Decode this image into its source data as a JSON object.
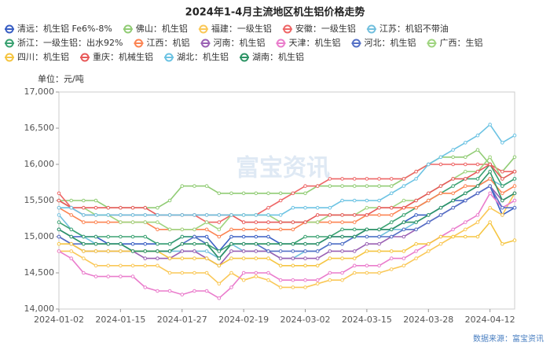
{
  "chart_data": {
    "type": "line",
    "title": "2024年1-4月主流地区机生铝价格走势",
    "y_unit_label": "单位：元/吨",
    "source": "数据来源：富宝资讯",
    "watermark": "富宝资讯",
    "grid": false,
    "legend_position": "top",
    "categories": [
      "2024-01-02",
      null,
      null,
      null,
      null,
      "2024-01-15",
      null,
      null,
      null,
      null,
      "2024-01-27",
      null,
      null,
      null,
      null,
      "2024-02-19",
      null,
      null,
      null,
      null,
      "2024-03-02",
      null,
      null,
      null,
      null,
      "2024-03-15",
      null,
      null,
      null,
      null,
      "2024-03-28",
      null,
      null,
      null,
      null,
      "2024-04-12",
      null,
      null
    ],
    "ylim": [
      14000,
      17000
    ],
    "yticks": [
      {
        "value": 14000,
        "label": "14,000"
      },
      {
        "value": 14500,
        "label": "14,500"
      },
      {
        "value": 15000,
        "label": "15,000"
      },
      {
        "value": 15500,
        "label": "15,500"
      },
      {
        "value": 16000,
        "label": "16,000"
      },
      {
        "value": 16500,
        "label": "16,500"
      },
      {
        "value": 17000,
        "label": "17,000"
      }
    ],
    "series": [
      {
        "name": "清远：机生铝 Fe6%-8%",
        "color": "#3a5fc4",
        "values": [
          15100,
          15000,
          15000,
          15000,
          14900,
          14900,
          14900,
          14900,
          14900,
          14900,
          15000,
          15000,
          15000,
          14800,
          15000,
          15000,
          15000,
          15000,
          14900,
          14900,
          14900,
          14900,
          15000,
          15000,
          15000,
          15100,
          15100,
          15100,
          15200,
          15300,
          15300,
          15400,
          15500,
          15500,
          15600,
          15700,
          15300,
          15400
        ]
      },
      {
        "name": "佛山：机生铝",
        "color": "#91cc75",
        "values": [
          15500,
          15500,
          15500,
          15500,
          15400,
          15400,
          15400,
          15400,
          15400,
          15500,
          15700,
          15700,
          15700,
          15600,
          15600,
          15600,
          15600,
          15600,
          15600,
          15600,
          15600,
          15700,
          15700,
          15700,
          15700,
          15700,
          15700,
          15700,
          15800,
          15900,
          16000,
          16100,
          16100,
          16100,
          16200,
          16000,
          15900,
          16100
        ]
      },
      {
        "name": "福建：一级生铝",
        "color": "#fac858",
        "values": [
          14800,
          14800,
          14700,
          14600,
          14600,
          14600,
          14600,
          14600,
          14600,
          14500,
          14500,
          14500,
          14500,
          14350,
          14500,
          14400,
          14450,
          14400,
          14300,
          14300,
          14300,
          14350,
          14400,
          14400,
          14500,
          14500,
          14500,
          14550,
          14600,
          14700,
          14800,
          14900,
          15000,
          15100,
          15200,
          15400,
          15300,
          15600
        ]
      },
      {
        "name": "安徽：一级生铝",
        "color": "#ee6666",
        "values": [
          15600,
          15400,
          15300,
          15300,
          15300,
          15300,
          15300,
          15300,
          15300,
          15300,
          15300,
          15300,
          15200,
          15200,
          15300,
          15300,
          15300,
          15400,
          15500,
          15600,
          15700,
          15700,
          15800,
          15800,
          15800,
          15800,
          15800,
          15800,
          15800,
          15900,
          16000,
          16000,
          16000,
          16000,
          16000,
          16000,
          15900,
          15900
        ]
      },
      {
        "name": "江苏：机铝不带油",
        "color": "#73c0de",
        "values": [
          15300,
          15100,
          15000,
          14900,
          14900,
          14900,
          14800,
          14800,
          14800,
          14800,
          14800,
          14800,
          14800,
          14700,
          14900,
          14800,
          14800,
          14800,
          14700,
          14700,
          14800,
          14800,
          14900,
          14900,
          15000,
          15000,
          15000,
          15100,
          15100,
          15200,
          15300,
          15400,
          15500,
          15600,
          15700,
          15800,
          15700,
          15800
        ]
      },
      {
        "name": "浙江：一级生铝：出水92%",
        "color": "#3ba272",
        "values": [
          15200,
          15100,
          15000,
          15000,
          15000,
          15000,
          15000,
          15000,
          14900,
          14900,
          15000,
          15000,
          14900,
          14800,
          14900,
          14900,
          14900,
          14900,
          14900,
          14900,
          15000,
          15000,
          15000,
          15100,
          15100,
          15100,
          15100,
          15200,
          15300,
          15400,
          15500,
          15600,
          15700,
          15800,
          15800,
          16000,
          15700,
          15800
        ]
      },
      {
        "name": "江西：机铝",
        "color": "#fc8452",
        "values": [
          15400,
          15300,
          15200,
          15200,
          15200,
          15200,
          15200,
          15200,
          15100,
          15100,
          15100,
          15100,
          15100,
          15000,
          15100,
          15100,
          15100,
          15100,
          15100,
          15100,
          15200,
          15200,
          15200,
          15200,
          15200,
          15300,
          15300,
          15300,
          15400,
          15400,
          15500,
          15600,
          15600,
          15700,
          15700,
          15800,
          15600,
          15700
        ]
      },
      {
        "name": "河南：机生铝",
        "color": "#9a60b4",
        "values": [
          15000,
          14900,
          14800,
          14800,
          14800,
          14800,
          14800,
          14700,
          14700,
          14700,
          14800,
          14800,
          14700,
          14600,
          14800,
          14800,
          14800,
          14800,
          14700,
          14700,
          14700,
          14700,
          14800,
          14800,
          14800,
          14900,
          14900,
          15000,
          15000,
          15100,
          15200,
          15300,
          15400,
          15500,
          15600,
          15700,
          15500,
          15600
        ]
      },
      {
        "name": "天津：机生铝",
        "color": "#ea7ccc",
        "values": [
          14800,
          14700,
          14500,
          14450,
          14450,
          14450,
          14450,
          14300,
          14250,
          14250,
          14200,
          14250,
          14250,
          14150,
          14300,
          14500,
          14500,
          14500,
          14400,
          14400,
          14400,
          14400,
          14500,
          14500,
          14600,
          14600,
          14600,
          14700,
          14700,
          14800,
          14900,
          15000,
          15100,
          15200,
          15300,
          15600,
          15400,
          15500
        ]
      },
      {
        "name": "河北：机生铝",
        "color": "#5470c6",
        "values": [
          15000,
          14900,
          14900,
          14900,
          14900,
          14900,
          14800,
          14800,
          14800,
          14800,
          14900,
          15000,
          14900,
          14700,
          14900,
          14900,
          14900,
          14800,
          14800,
          14800,
          14800,
          14800,
          14900,
          14900,
          15000,
          15000,
          15000,
          15000,
          15100,
          15100,
          15200,
          15300,
          15400,
          15500,
          15600,
          15700,
          15400,
          15400
        ]
      },
      {
        "name": "广西：生铝",
        "color": "#9fd47f",
        "values": [
          15500,
          15400,
          15400,
          15300,
          15300,
          15200,
          15200,
          15200,
          15200,
          15100,
          15100,
          15100,
          15200,
          15100,
          15300,
          15300,
          15300,
          15300,
          15200,
          15200,
          15200,
          15200,
          15300,
          15300,
          15300,
          15400,
          15400,
          15400,
          15500,
          15500,
          15600,
          15700,
          15800,
          15900,
          15900,
          16100,
          15800,
          15900
        ]
      },
      {
        "name": "四川：机生铝",
        "color": "#f5c542",
        "values": [
          14900,
          14900,
          14800,
          14800,
          14800,
          14800,
          14800,
          14800,
          14800,
          14700,
          14700,
          14700,
          14700,
          14600,
          14700,
          14700,
          14700,
          14700,
          14600,
          14600,
          14600,
          14600,
          14700,
          14700,
          14700,
          14800,
          14800,
          14800,
          14800,
          14900,
          14900,
          15000,
          15000,
          15000,
          15000,
          15200,
          14900,
          14950
        ]
      },
      {
        "name": "重庆：机械生铝",
        "color": "#e85a5a",
        "values": [
          15500,
          15400,
          15400,
          15400,
          15400,
          15400,
          15400,
          15400,
          15300,
          15300,
          15300,
          15300,
          15300,
          15300,
          15300,
          15200,
          15200,
          15200,
          15200,
          15200,
          15200,
          15300,
          15300,
          15300,
          15300,
          15300,
          15400,
          15400,
          15400,
          15500,
          15600,
          15700,
          15800,
          15800,
          15900,
          16000,
          15800,
          15900
        ]
      },
      {
        "name": "湖北：机生铝",
        "color": "#6cc3e3",
        "values": [
          15400,
          15400,
          15300,
          15300,
          15300,
          15300,
          15300,
          15300,
          15300,
          15300,
          15300,
          15300,
          15300,
          15300,
          15300,
          15300,
          15300,
          15300,
          15300,
          15400,
          15400,
          15400,
          15400,
          15500,
          15500,
          15500,
          15500,
          15600,
          15700,
          15800,
          16000,
          16100,
          16200,
          16300,
          16400,
          16550,
          16300,
          16400
        ]
      },
      {
        "name": "湖南：机生铝",
        "color": "#2e9466",
        "values": [
          15100,
          15000,
          14900,
          14900,
          14900,
          14900,
          14800,
          14800,
          14800,
          14800,
          14900,
          14900,
          14900,
          14700,
          14900,
          14900,
          14900,
          14900,
          14900,
          14900,
          14900,
          14900,
          15000,
          15000,
          15000,
          15100,
          15100,
          15100,
          15200,
          15200,
          15300,
          15400,
          15500,
          15600,
          15700,
          15900,
          15500,
          15600
        ]
      }
    ]
  }
}
